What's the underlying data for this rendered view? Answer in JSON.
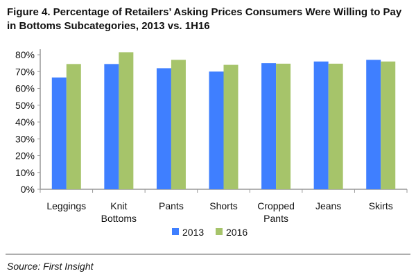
{
  "chart_data": {
    "type": "bar",
    "title": "Figure 4. Percentage of Retailers’ Asking Prices Consumers Were Willing to Pay in Bottoms Subcategories, 2013 vs. 1H16",
    "categories": [
      [
        "Leggings"
      ],
      [
        "Knit",
        "Bottoms"
      ],
      [
        "Pants"
      ],
      [
        "Shorts"
      ],
      [
        "Cropped",
        "Pants"
      ],
      [
        "Jeans"
      ],
      [
        "Skirts"
      ]
    ],
    "series": [
      {
        "name": "2013",
        "color": "#3f7fff",
        "values": [
          66.5,
          74.5,
          72,
          70,
          75,
          76,
          77
        ]
      },
      {
        "name": "2016",
        "color": "#a6c46a",
        "values": [
          74.5,
          81.5,
          77,
          74,
          74.7,
          74.7,
          76
        ]
      }
    ],
    "ylim": [
      0,
      80
    ],
    "yticks": [
      "0%",
      "10%",
      "20%",
      "30%",
      "40%",
      "50%",
      "60%",
      "70%",
      "80%"
    ],
    "legend": "bottom",
    "grid": false
  },
  "source": "Source: First Insight"
}
